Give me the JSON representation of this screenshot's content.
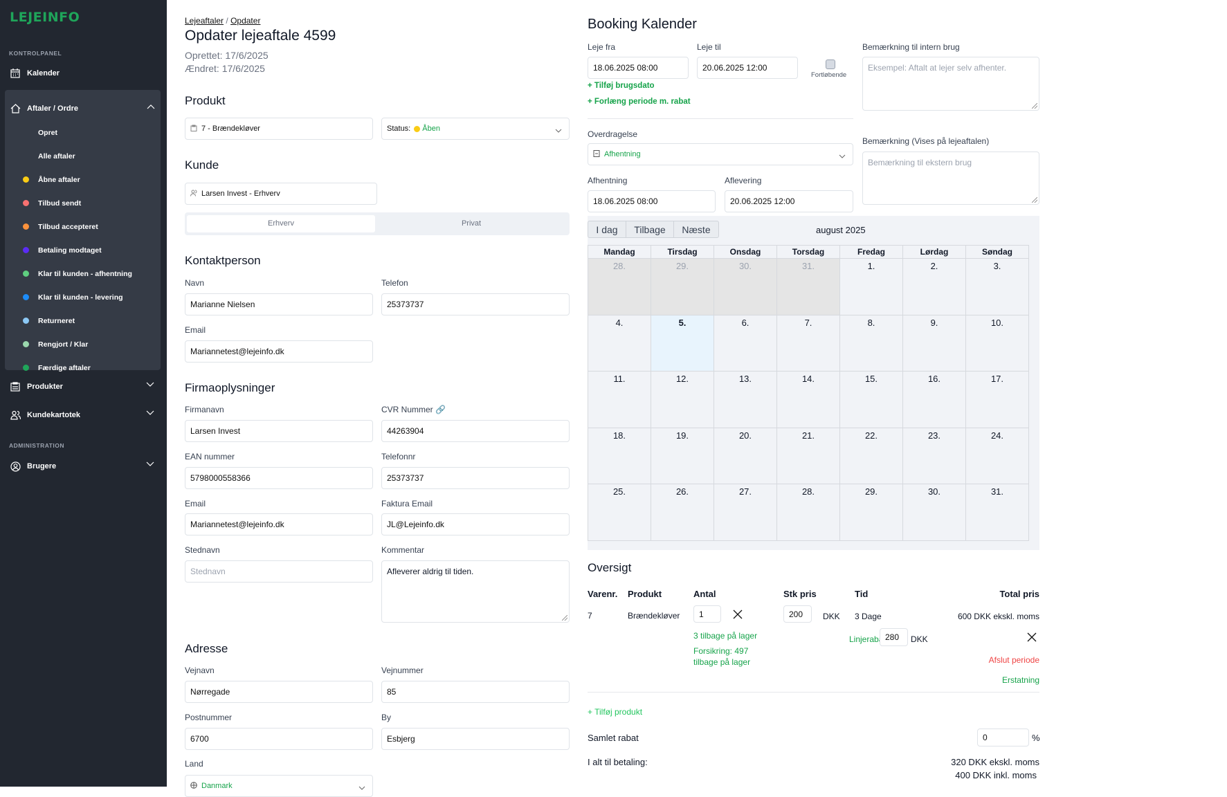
{
  "sidebar": {
    "logo": "LEJEINFO",
    "section1": "KONTROLPANEL",
    "kalender": "Kalender",
    "aftaler": "Aftaler / Ordre",
    "sub": [
      {
        "label": "Opret"
      },
      {
        "label": "Alle aftaler"
      },
      {
        "label": "Åbne aftaler",
        "color": "#facc15"
      },
      {
        "label": "Tilbud sendt",
        "color": "#f87171"
      },
      {
        "label": "Tilbud accepteret",
        "color": "#fb923c"
      },
      {
        "label": "Betaling modtaget",
        "color": "#5b2cf5"
      },
      {
        "label": "Klar til kunden - afhentning",
        "color": "#5fcf80"
      },
      {
        "label": "Klar til kunden - levering",
        "color": "#1d8cf8"
      },
      {
        "label": "Returneret",
        "color": "#8cc8f5"
      },
      {
        "label": "Rengjort / Klar",
        "color": "#9bd8ae"
      },
      {
        "label": "Færdige aftaler",
        "color": "#1fa55a"
      }
    ],
    "produkter": "Produkter",
    "kundekartotek": "Kundekartotek",
    "section2": "ADMINISTRATION",
    "brugere": "Brugere"
  },
  "header": {
    "bc1": "Lejeaftaler",
    "bc_sep": "/",
    "bc2": "Opdater",
    "title": "Opdater lejeaftale 4599",
    "created": "Oprettet: 17/6/2025",
    "changed": "Ændret: 17/6/2025"
  },
  "produkt": {
    "heading": "Produkt",
    "product": "7 - Brændekløver",
    "status_label": "Status:",
    "status_value": "Åben",
    "status_color": "#facc15"
  },
  "kunde": {
    "heading": "Kunde",
    "customer": "Larsen Invest - Erhverv",
    "tab_business": "Erhverv",
    "tab_private": "Privat"
  },
  "kontakt": {
    "heading": "Kontaktperson",
    "navn_label": "Navn",
    "navn": "Marianne Nielsen",
    "tlf_label": "Telefon",
    "tlf": "25373737",
    "email_label": "Email",
    "email": "Mariannetest@lejeinfo.dk"
  },
  "firma": {
    "heading": "Firmaoplysninger",
    "firmanavn_label": "Firmanavn",
    "firmanavn": "Larsen Invest",
    "cvr_label": "CVR Nummer",
    "cvr": "44263904",
    "ean_label": "EAN nummer",
    "ean": "5798000558366",
    "tlf_label": "Telefonnr",
    "tlf": "25373737",
    "email_label": "Email",
    "email": "Mariannetest@lejeinfo.dk",
    "faktura_label": "Faktura Email",
    "faktura": "JL@Lejeinfo.dk",
    "sted_label": "Stednavn",
    "sted_placeholder": "Stednavn",
    "komm_label": "Kommentar",
    "komm": "Afleverer aldrig til tiden."
  },
  "adresse": {
    "heading": "Adresse",
    "vejnavn_label": "Vejnavn",
    "vejnavn": "Nørregade",
    "vejnr_label": "Vejnummer",
    "vejnr": "85",
    "post_label": "Postnummer",
    "post": "6700",
    "by_label": "By",
    "by": "Esbjerg",
    "land_label": "Land",
    "land": "Danmark"
  },
  "booking": {
    "heading": "Booking Kalender",
    "fra_label": "Leje fra",
    "fra": "18.06.2025 08:00",
    "til_label": "Leje til",
    "til": "20.06.2025 12:00",
    "fortl": "Fortløbende",
    "add_date": "+ Tilføj brugsdato",
    "extend": "+ Forlæng periode m. rabat",
    "intern_label": "Bemærkning til intern brug",
    "intern_placeholder": "Eksempel: Aftalt at lejer selv afhenter.",
    "ekstern_label": "Bemærkning (Vises på lejeaftalen)",
    "ekstern_placeholder": "Bemærkning til ekstern brug",
    "overd_label": "Overdragelse",
    "overd": "Afhentning",
    "afh_label": "Afhentning",
    "afh": "18.06.2025 08:00",
    "afl_label": "Aflevering",
    "afl": "20.06.2025 12:00"
  },
  "calendar": {
    "today_btn": "I dag",
    "back_btn": "Tilbage",
    "next_btn": "Næste",
    "month": "august 2025",
    "weekdays": [
      "Mandag",
      "Tirsdag",
      "Onsdag",
      "Torsdag",
      "Fredag",
      "Lørdag",
      "Søndag"
    ],
    "weeks": [
      [
        "28.",
        "29.",
        "30.",
        "31.",
        "1.",
        "2.",
        "3."
      ],
      [
        "4.",
        "5.",
        "6.",
        "7.",
        "8.",
        "9.",
        "10."
      ],
      [
        "11.",
        "12.",
        "13.",
        "14.",
        "15.",
        "16.",
        "17."
      ],
      [
        "18.",
        "19.",
        "20.",
        "21.",
        "22.",
        "23.",
        "24."
      ],
      [
        "25.",
        "26.",
        "27.",
        "28.",
        "29.",
        "30.",
        "31."
      ]
    ],
    "other_month_cells": [
      [
        0,
        0
      ],
      [
        0,
        1
      ],
      [
        0,
        2
      ],
      [
        0,
        3
      ]
    ],
    "today_cell": [
      1,
      1
    ]
  },
  "oversigt": {
    "heading": "Oversigt",
    "cols": [
      "Varenr.",
      "Produkt",
      "Antal",
      "Stk pris",
      "Tid",
      "Total pris"
    ],
    "row": {
      "varenr": "7",
      "produkt": "Brændekløver",
      "antal": "1",
      "stk": "200",
      "cur": "DKK",
      "tid": "3 Dage",
      "total": "600 DKK ekskl. moms",
      "stock": "3 tilbage på lager",
      "ins1": "Forsikring: 497",
      "ins2": "tilbage på lager",
      "rabat_label": "Linjerabat:",
      "rabat": "280",
      "rabat_cur": "DKK",
      "afslut": "Afslut periode",
      "erstatning": "Erstatning"
    },
    "add": "+ Tilføj produkt",
    "samlet_label": "Samlet rabat",
    "samlet": "0",
    "pct": "%",
    "ialt_label": "I alt til betaling:",
    "ialt_ex": "320 DKK ekskl. moms",
    "ialt_in": "400 DKK inkl. moms"
  }
}
